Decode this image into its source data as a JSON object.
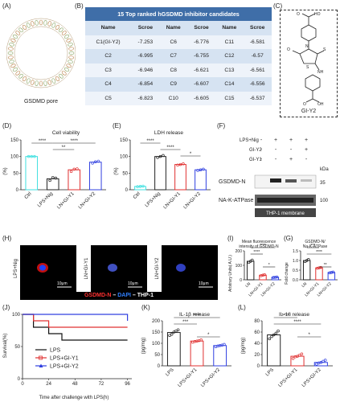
{
  "panels": {
    "A": {
      "label": "(A)",
      "caption": "GSDMD pore"
    },
    "B": {
      "label": "(B)",
      "title": "15 Top ranked  hGSDMD inhibitor candidates",
      "headers": [
        "Name",
        "Scroe",
        "Name",
        "Scroe",
        "Name",
        "Scroe"
      ],
      "rows": [
        [
          "C1(GI-Y2)",
          "-7.253",
          "C6",
          "-6.776",
          "C11",
          "-6.581"
        ],
        [
          "C2",
          "-6.995",
          "C7",
          "-6.755",
          "C12",
          "-6.57"
        ],
        [
          "C3",
          "-6.946",
          "C8",
          "-6.621",
          "C13",
          "-6.561"
        ],
        [
          "C4",
          "-6.854",
          "C9",
          "-6.607",
          "C14",
          "-6.556"
        ],
        [
          "C5",
          "-6.823",
          "C10",
          "-6.605",
          "C15",
          "-6.537"
        ]
      ]
    },
    "C": {
      "label": "(C)",
      "caption": "GI-Y2",
      "atoms": [
        "O",
        "HO",
        "O",
        "S",
        "N",
        "NH",
        "S",
        "O",
        "OH",
        "O"
      ]
    },
    "D": {
      "label": "(D)",
      "title": "Cell viability",
      "ylabel": "(%)",
      "yticks": [
        "0",
        "50",
        "100",
        "150"
      ],
      "xticks": [
        "Ctrl",
        "LPS+Nig",
        "LN+GI-Y1",
        "LN+GI-Y2"
      ],
      "sig": [
        "****",
        "**",
        "****"
      ]
    },
    "E": {
      "label": "(E)",
      "title": "LDH release",
      "ylabel": "(%)",
      "yticks": [
        "0",
        "50",
        "100",
        "150"
      ],
      "xticks": [
        "Ctrl",
        "LPS+Nig",
        "LN+GI-Y1",
        "LN+GI-Y2"
      ],
      "sig": [
        "****",
        "****",
        "*"
      ]
    },
    "F": {
      "label": "(F)",
      "rows": [
        "LPS+Nig",
        "GI-Y2",
        "GI-Y1"
      ],
      "signs": [
        [
          "-",
          "+",
          "+",
          "+"
        ],
        [
          "-",
          "-",
          "-",
          "+"
        ],
        [
          "-",
          "-",
          "+",
          "-"
        ]
      ],
      "kda": "kDa",
      "bands": [
        "GSDMD-N",
        "NA-K-ATPase"
      ],
      "sizes": [
        "35",
        "100"
      ],
      "caption": "THP-1 membrane"
    },
    "H": {
      "label": "(H)",
      "images": [
        "LPS+Nig",
        "LN+GI-Y1",
        "LN+GI-Y2"
      ],
      "scale": "10μm",
      "legend": {
        "a": "GSDMD-N",
        "b": "DAPI",
        "c": "THP-1",
        "dash": "–"
      }
    },
    "I": {
      "label": "(I)",
      "title1": "Mean fluorescence",
      "title2": "intensity of GSDMD-N",
      "ylabel": "Arbitrary Units( A.U.)",
      "yticks": [
        "0",
        "100",
        "200"
      ],
      "xticks": [
        "LN",
        "LN+GI-Y1",
        "LN+GI-Y2"
      ],
      "sig": [
        "****",
        "****",
        "*"
      ]
    },
    "G": {
      "label": "(G)",
      "title1": "GSDMD-N/",
      "title2": "Na-K-ATPase",
      "ylabel": "Fold change",
      "yticks": [
        "0.0",
        "0.5",
        "1.0",
        "1.5"
      ],
      "xticks": [
        "LN",
        "LN+GI-Y1",
        "LN+GI-Y2"
      ],
      "sig": [
        "***",
        "****",
        "**"
      ]
    },
    "J": {
      "label": "(J)",
      "ylabel": "Survival(%)",
      "xlabel": "Time after challenge with LPS(h)",
      "yticks": [
        "0",
        "50",
        "100"
      ],
      "xticks": [
        "0",
        "24",
        "48",
        "72",
        "96"
      ],
      "legend": [
        "LPS",
        "LPS+GI-Y1",
        "LPS+GI-Y2"
      ]
    },
    "K": {
      "label": "(K)",
      "title": "IL-1β release",
      "ylabel": "(pg/mg)",
      "yticks": [
        "0",
        "50",
        "100",
        "150",
        "200"
      ],
      "xticks": [
        "LPS",
        "LPS+GI-Y1",
        "LPS+GI-Y2"
      ],
      "sig": [
        "****",
        "***",
        "*"
      ]
    },
    "L": {
      "label": "(L)",
      "title": "IL-18 release",
      "ylabel": "(pg/mg)",
      "yticks": [
        "0",
        "20",
        "40",
        "60",
        "80"
      ],
      "xticks": [
        "LPS",
        "LPS+GI-Y1",
        "LPS+GI-Y2"
      ],
      "sig": [
        "****",
        "****",
        "*"
      ]
    }
  },
  "chart_data": [
    {
      "type": "bar",
      "panel": "D",
      "title": "Cell viability",
      "ylabel": "(%)",
      "ylim": [
        0,
        150
      ],
      "categories": [
        "Ctrl",
        "LPS+Nig",
        "LN+GI-Y1",
        "LN+GI-Y2"
      ],
      "values": [
        100,
        33,
        60,
        83
      ],
      "points": [
        [
          100,
          100,
          100
        ],
        [
          28,
          37,
          35
        ],
        [
          55,
          62,
          63
        ],
        [
          80,
          84,
          86
        ]
      ],
      "colors": [
        "#40e0e0",
        "#222222",
        "#e03030",
        "#3040e0"
      ]
    },
    {
      "type": "bar",
      "panel": "E",
      "title": "LDH release",
      "ylabel": "(%)",
      "ylim": [
        0,
        150
      ],
      "categories": [
        "Ctrl",
        "LPS+Nig",
        "LN+GI-Y1",
        "LN+GI-Y2"
      ],
      "values": [
        10,
        100,
        76,
        60
      ],
      "points": [
        [
          9,
          10,
          11
        ],
        [
          97,
          100,
          103
        ],
        [
          74,
          76,
          78
        ],
        [
          58,
          60,
          62
        ]
      ],
      "colors": [
        "#40e0e0",
        "#222222",
        "#e03030",
        "#3040e0"
      ]
    },
    {
      "type": "bar",
      "panel": "I",
      "ylabel": "Arbitrary Units( A.U.)",
      "ylim": [
        0,
        250
      ],
      "categories": [
        "LN",
        "LN+GI-Y1",
        "LN+GI-Y2"
      ],
      "values": [
        160,
        40,
        22
      ],
      "points": [
        [
          150,
          160,
          170
        ],
        [
          36,
          40,
          44
        ],
        [
          20,
          22,
          24
        ]
      ],
      "colors": [
        "#222222",
        "#e03030",
        "#3040e0"
      ]
    },
    {
      "type": "bar",
      "panel": "G",
      "ylabel": "Fold change",
      "ylim": [
        0,
        1.5
      ],
      "categories": [
        "LN",
        "LN+GI-Y1",
        "LN+GI-Y2"
      ],
      "values": [
        1.0,
        0.62,
        0.38
      ],
      "points": [
        [
          0.95,
          1.0,
          1.05
        ],
        [
          0.6,
          0.62,
          0.64
        ],
        [
          0.36,
          0.38,
          0.4
        ]
      ],
      "colors": [
        "#222222",
        "#e03030",
        "#3040e0"
      ]
    },
    {
      "type": "line",
      "panel": "J",
      "xlabel": "Time after challenge with LPS(h)",
      "ylabel": "Survival(%)",
      "xlim": [
        0,
        100
      ],
      "ylim": [
        0,
        100
      ],
      "series": [
        {
          "name": "LPS",
          "color": "#111111",
          "points": [
            [
              0,
              100
            ],
            [
              10,
              100
            ],
            [
              10,
              80
            ],
            [
              24,
              80
            ],
            [
              24,
              70
            ],
            [
              36,
              70
            ],
            [
              36,
              60
            ],
            [
              96,
              60
            ]
          ]
        },
        {
          "name": "LPS+GI-Y1",
          "color": "#e03030",
          "points": [
            [
              0,
              100
            ],
            [
              10,
              100
            ],
            [
              10,
              90
            ],
            [
              24,
              90
            ],
            [
              24,
              80
            ],
            [
              96,
              80
            ]
          ]
        },
        {
          "name": "LPS+GI-Y2",
          "color": "#3040e0",
          "points": [
            [
              0,
              100
            ],
            [
              96,
              100
            ],
            [
              96,
              90
            ]
          ]
        }
      ]
    },
    {
      "type": "bar",
      "panel": "K",
      "title": "IL-1β release",
      "ylabel": "(pg/mg)",
      "ylim": [
        0,
        200
      ],
      "categories": [
        "LPS",
        "LPS+GI-Y1",
        "LPS+GI-Y2"
      ],
      "values": [
        148,
        110,
        90
      ],
      "points": [
        [
          135,
          140,
          150,
          155,
          160
        ],
        [
          105,
          108,
          110,
          112,
          115
        ],
        [
          85,
          88,
          90,
          92,
          95
        ]
      ],
      "colors": [
        "#222222",
        "#e03030",
        "#3040e0"
      ]
    },
    {
      "type": "bar",
      "panel": "L",
      "title": "IL-18 release",
      "ylabel": "(pg/mg)",
      "ylim": [
        0,
        80
      ],
      "categories": [
        "LPS",
        "LPS+GI-Y1",
        "LPS+GI-Y2"
      ],
      "values": [
        55,
        17,
        6
      ],
      "points": [
        [
          48,
          52,
          55,
          58,
          62
        ],
        [
          13,
          16,
          17,
          19,
          21
        ],
        [
          3,
          5,
          6,
          8,
          10
        ]
      ],
      "colors": [
        "#222222",
        "#e03030",
        "#3040e0"
      ]
    }
  ]
}
